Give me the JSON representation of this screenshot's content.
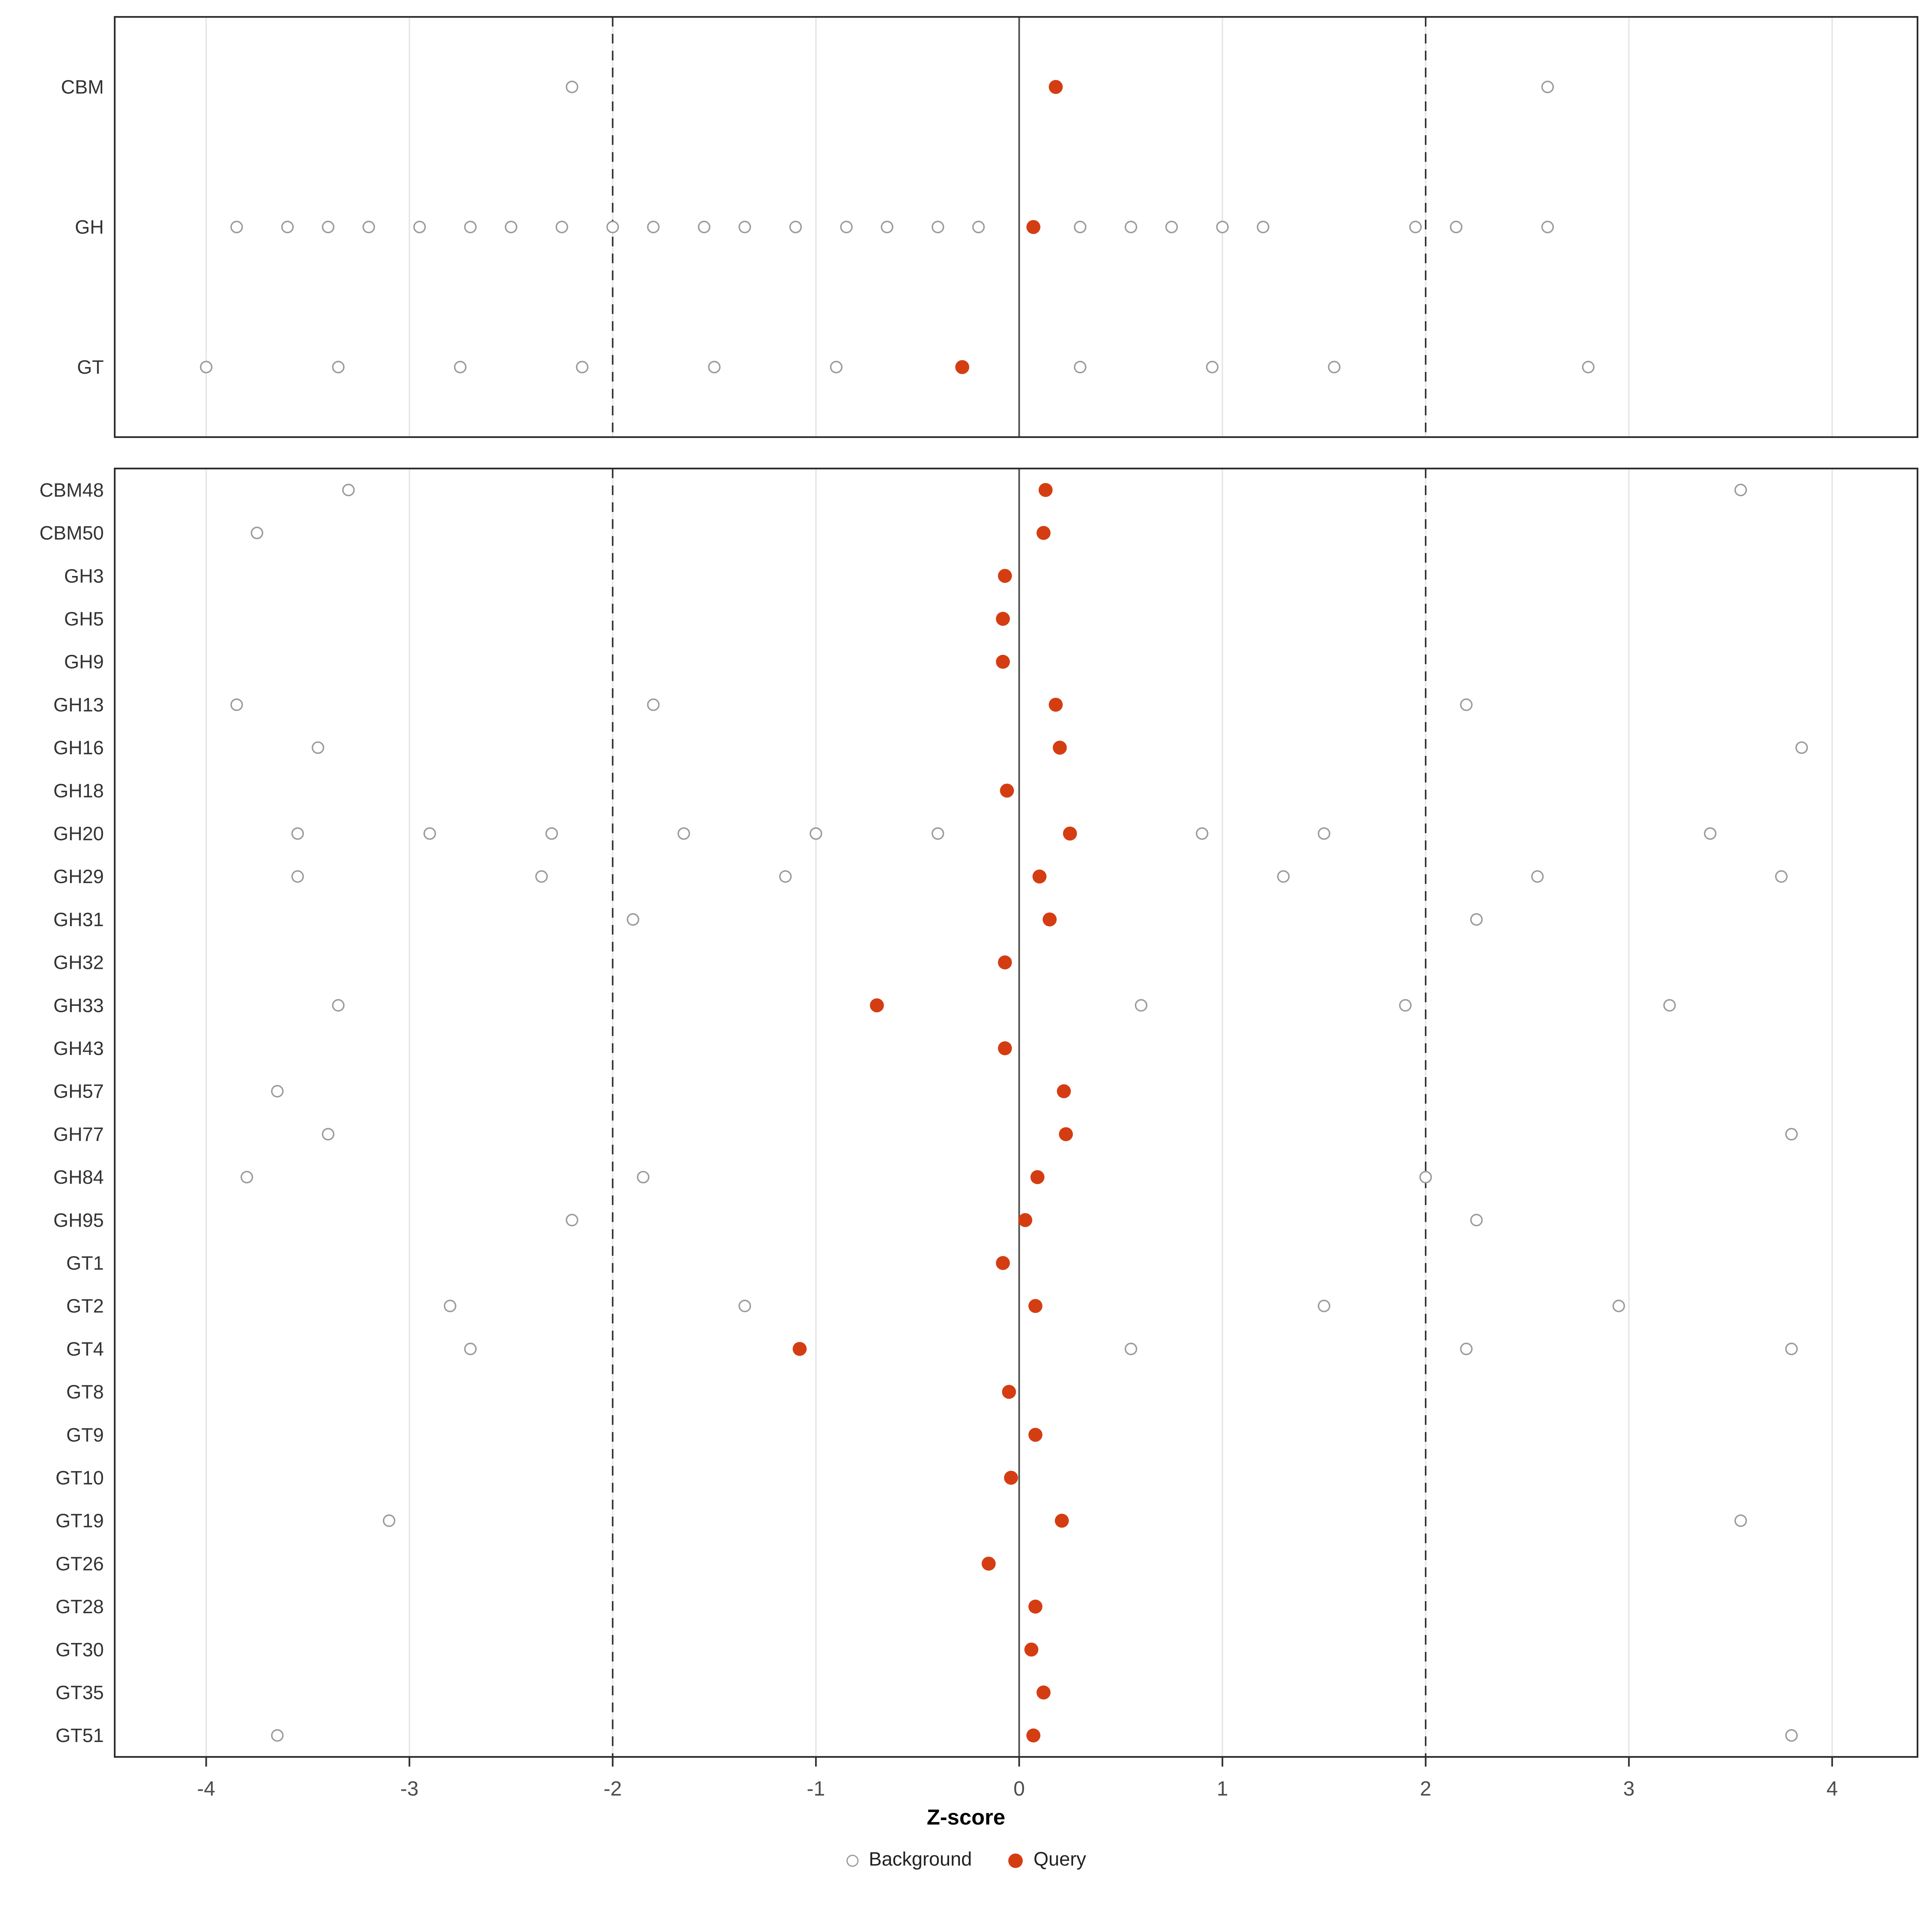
{
  "chart_data": {
    "type": "scatter",
    "title": "",
    "xlabel": "Z-score",
    "ylabel": "",
    "x_ticks": [
      -4,
      -3,
      -2,
      -1,
      0,
      1,
      2,
      3,
      4
    ],
    "x_range": [
      -4.45,
      4.42
    ],
    "grid": "vertical-major-only",
    "reference_lines": {
      "solid": 0,
      "dashed": [
        -2,
        2
      ]
    },
    "legend": {
      "position": "bottom",
      "background_label": "Background",
      "query_label": "Query"
    },
    "colors": {
      "query": "#d43d12",
      "background_stroke": "#9b9b9b",
      "grid": "#e6e6e6",
      "panel_border": "#2b2b2b",
      "zero_line": "#555555",
      "dashed_line": "#333333",
      "tick_label": "#4d4d4d",
      "row_label": "#333333"
    },
    "panels": [
      {
        "name": "top",
        "rows": [
          {
            "label": "CBM",
            "query": 0.18,
            "background": [
              -2.2,
              2.6
            ]
          },
          {
            "label": "GH",
            "query": 0.07,
            "background": [
              -3.85,
              -3.6,
              -3.4,
              -3.2,
              -2.95,
              -2.7,
              -2.5,
              -2.25,
              -2.0,
              -1.8,
              -1.55,
              -1.35,
              -1.1,
              -0.85,
              -0.65,
              -0.4,
              -0.2,
              0.3,
              0.55,
              0.75,
              1.0,
              1.2,
              1.95,
              2.15,
              2.6
            ]
          },
          {
            "label": "GT",
            "query": -0.28,
            "background": [
              -4.0,
              -3.35,
              -2.75,
              -2.15,
              -1.5,
              -0.9,
              0.3,
              0.95,
              1.55,
              2.8
            ]
          }
        ]
      },
      {
        "name": "bottom",
        "rows": [
          {
            "label": "CBM48",
            "query": 0.13,
            "background": [
              -3.3,
              3.55
            ]
          },
          {
            "label": "CBM50",
            "query": 0.12,
            "background": [
              -3.75
            ]
          },
          {
            "label": "GH3",
            "query": -0.07,
            "background": []
          },
          {
            "label": "GH5",
            "query": -0.08,
            "background": []
          },
          {
            "label": "GH9",
            "query": -0.08,
            "background": []
          },
          {
            "label": "GH13",
            "query": 0.18,
            "background": [
              -3.85,
              -1.8,
              2.2
            ]
          },
          {
            "label": "GH16",
            "query": 0.2,
            "background": [
              -3.45,
              3.85
            ]
          },
          {
            "label": "GH18",
            "query": -0.06,
            "background": []
          },
          {
            "label": "GH20",
            "query": 0.25,
            "background": [
              -3.55,
              -2.9,
              -2.3,
              -1.65,
              -1.0,
              -0.4,
              0.9,
              1.5,
              3.4
            ]
          },
          {
            "label": "GH29",
            "query": 0.1,
            "background": [
              -3.55,
              -2.35,
              -1.15,
              1.3,
              2.55,
              3.75
            ]
          },
          {
            "label": "GH31",
            "query": 0.15,
            "background": [
              -1.9,
              2.25
            ]
          },
          {
            "label": "GH32",
            "query": -0.07,
            "background": []
          },
          {
            "label": "GH33",
            "query": -0.7,
            "background": [
              -3.35,
              0.6,
              1.9,
              3.2
            ]
          },
          {
            "label": "GH43",
            "query": -0.07,
            "background": []
          },
          {
            "label": "GH57",
            "query": 0.22,
            "background": [
              -3.65
            ]
          },
          {
            "label": "GH77",
            "query": 0.23,
            "background": [
              -3.4,
              3.8
            ]
          },
          {
            "label": "GH84",
            "query": 0.09,
            "background": [
              -3.8,
              -1.85,
              2.0
            ]
          },
          {
            "label": "GH95",
            "query": 0.03,
            "background": [
              -2.2,
              2.25
            ]
          },
          {
            "label": "GT1",
            "query": -0.08,
            "background": []
          },
          {
            "label": "GT2",
            "query": 0.08,
            "background": [
              -2.8,
              -1.35,
              1.5,
              2.95
            ]
          },
          {
            "label": "GT4",
            "query": -1.08,
            "background": [
              -2.7,
              0.55,
              2.2,
              3.8
            ]
          },
          {
            "label": "GT8",
            "query": -0.05,
            "background": []
          },
          {
            "label": "GT9",
            "query": 0.08,
            "background": []
          },
          {
            "label": "GT10",
            "query": -0.04,
            "background": []
          },
          {
            "label": "GT19",
            "query": 0.21,
            "background": [
              -3.1,
              3.55
            ]
          },
          {
            "label": "GT26",
            "query": -0.15,
            "background": []
          },
          {
            "label": "GT28",
            "query": 0.08,
            "background": []
          },
          {
            "label": "GT30",
            "query": 0.06,
            "background": []
          },
          {
            "label": "GT35",
            "query": 0.12,
            "background": []
          },
          {
            "label": "GT51",
            "query": 0.07,
            "background": [
              -3.65,
              3.8
            ]
          }
        ]
      }
    ]
  }
}
